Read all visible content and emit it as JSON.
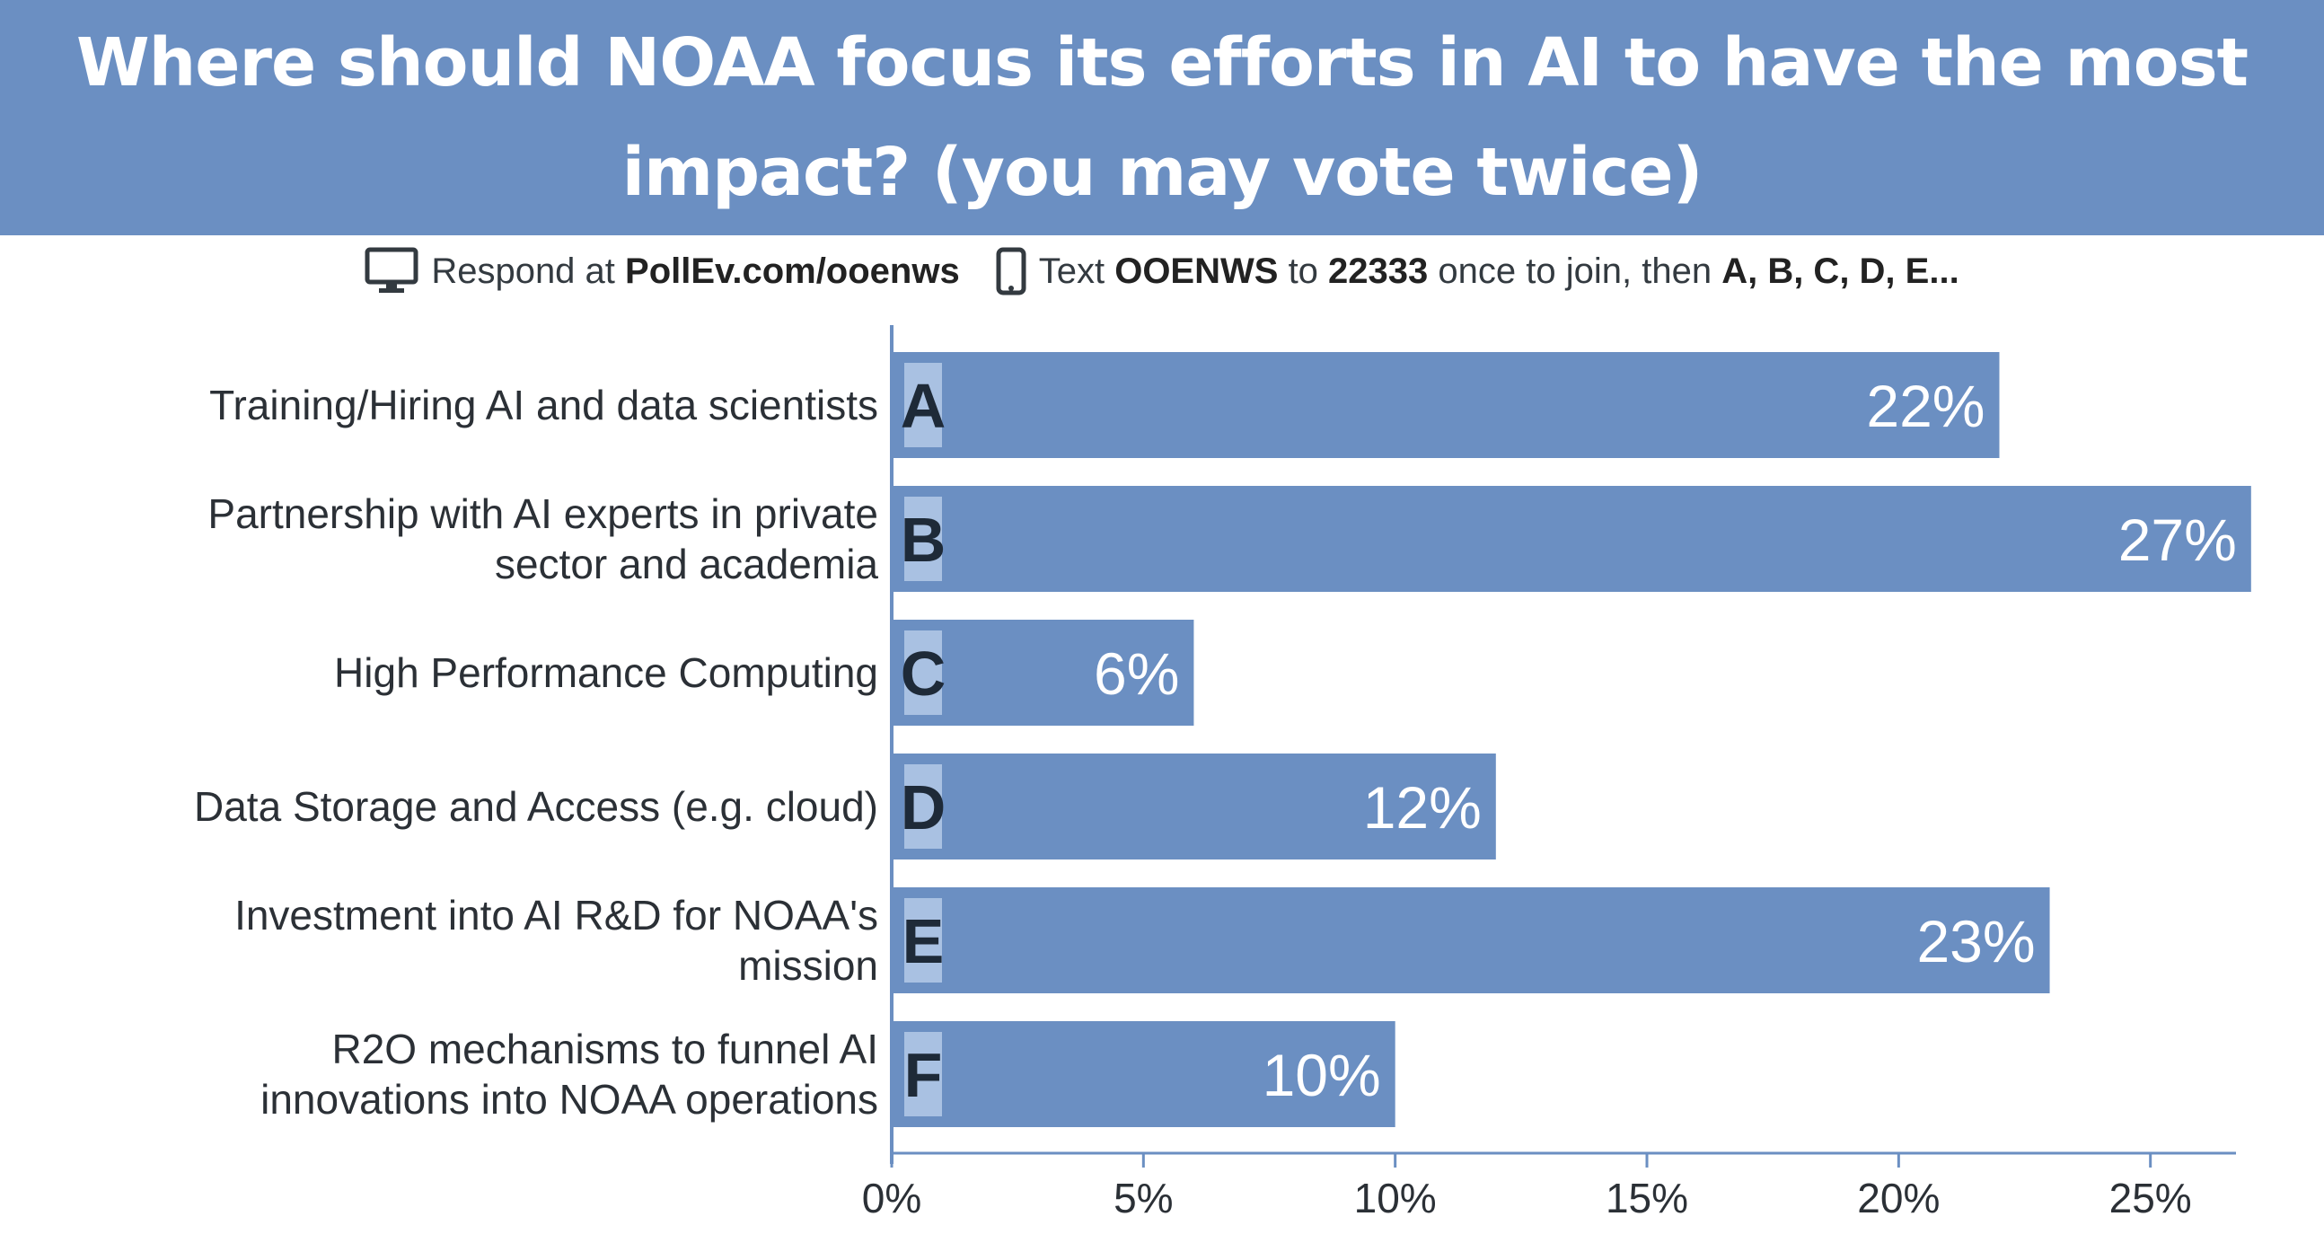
{
  "header": {
    "title": "Where should NOAA focus its efforts in AI to have the most impact? (you may vote twice)"
  },
  "instructions": {
    "respond_prefix": "Respond at",
    "respond_url": "PollEv.com/ooenws",
    "text_prefix": "Text",
    "text_code": "OOENWS",
    "text_to": "to",
    "text_number": "22333",
    "text_suffix": "once to join, then",
    "text_options": "A, B, C, D, E..."
  },
  "colors": {
    "header_bg": "#6b8fc2",
    "bar": "#6b8fc2",
    "letter_box": "#a9c1e2",
    "axis": "#6b8fc2"
  },
  "icons": [
    "monitor-icon",
    "phone-icon"
  ],
  "chart_data": {
    "type": "bar",
    "orientation": "horizontal",
    "title": "Where should NOAA focus its efforts in AI to have the most impact? (you may vote twice)",
    "categories": [
      [
        "Training/Hiring AI and data scientists"
      ],
      [
        "Partnership with AI experts in private",
        "sector and academia"
      ],
      [
        "High Performance Computing"
      ],
      [
        "Data Storage and Access (e.g. cloud)"
      ],
      [
        "Investment into AI R&D for NOAA's",
        "mission"
      ],
      [
        "R2O mechanisms to funnel AI",
        "innovations into NOAA operations"
      ]
    ],
    "letters": [
      "A",
      "B",
      "C",
      "D",
      "E",
      "F"
    ],
    "values": [
      22,
      27,
      6,
      12,
      23,
      10
    ],
    "value_labels": [
      "22%",
      "27%",
      "6%",
      "12%",
      "23%",
      "10%"
    ],
    "xticks": [
      "0%",
      "5%",
      "10%",
      "15%",
      "20%",
      "25%"
    ],
    "xtick_values": [
      0,
      5,
      10,
      15,
      20,
      25
    ],
    "xlim": [
      0,
      26.7
    ],
    "grid": false,
    "legend": "none"
  }
}
